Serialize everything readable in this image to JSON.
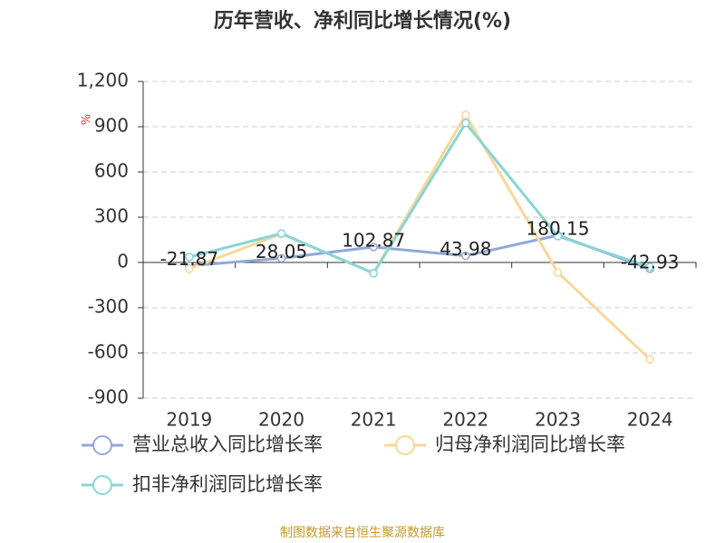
{
  "chart_data": {
    "type": "line",
    "title": "历年营收、净利同比增长情况(%)",
    "y_unit": "%",
    "categories": [
      "2019",
      "2020",
      "2021",
      "2022",
      "2023",
      "2024"
    ],
    "series": [
      {
        "name": "营业总收入同比增长率",
        "color": "#8fa9d8",
        "values": [
          -21.87,
          28.05,
          102.87,
          43.98,
          180.15,
          -42.93
        ],
        "show_labels": true
      },
      {
        "name": "归母净利润同比增长率",
        "color": "#f8d79a",
        "values": [
          -42,
          190,
          -70,
          978,
          -66,
          -642
        ]
      },
      {
        "name": "扣非净利润同比增长率",
        "color": "#8ad5d6",
        "values": [
          36,
          192,
          -72,
          924,
          174,
          -30
        ]
      }
    ],
    "ylim": [
      -900,
      1200
    ],
    "yticks": [
      -900,
      -600,
      -300,
      0,
      300,
      600,
      900,
      {
        "value": 1200,
        "label": "1,200"
      }
    ],
    "grid": true,
    "source": "制图数据来自恒生聚源数据库"
  }
}
